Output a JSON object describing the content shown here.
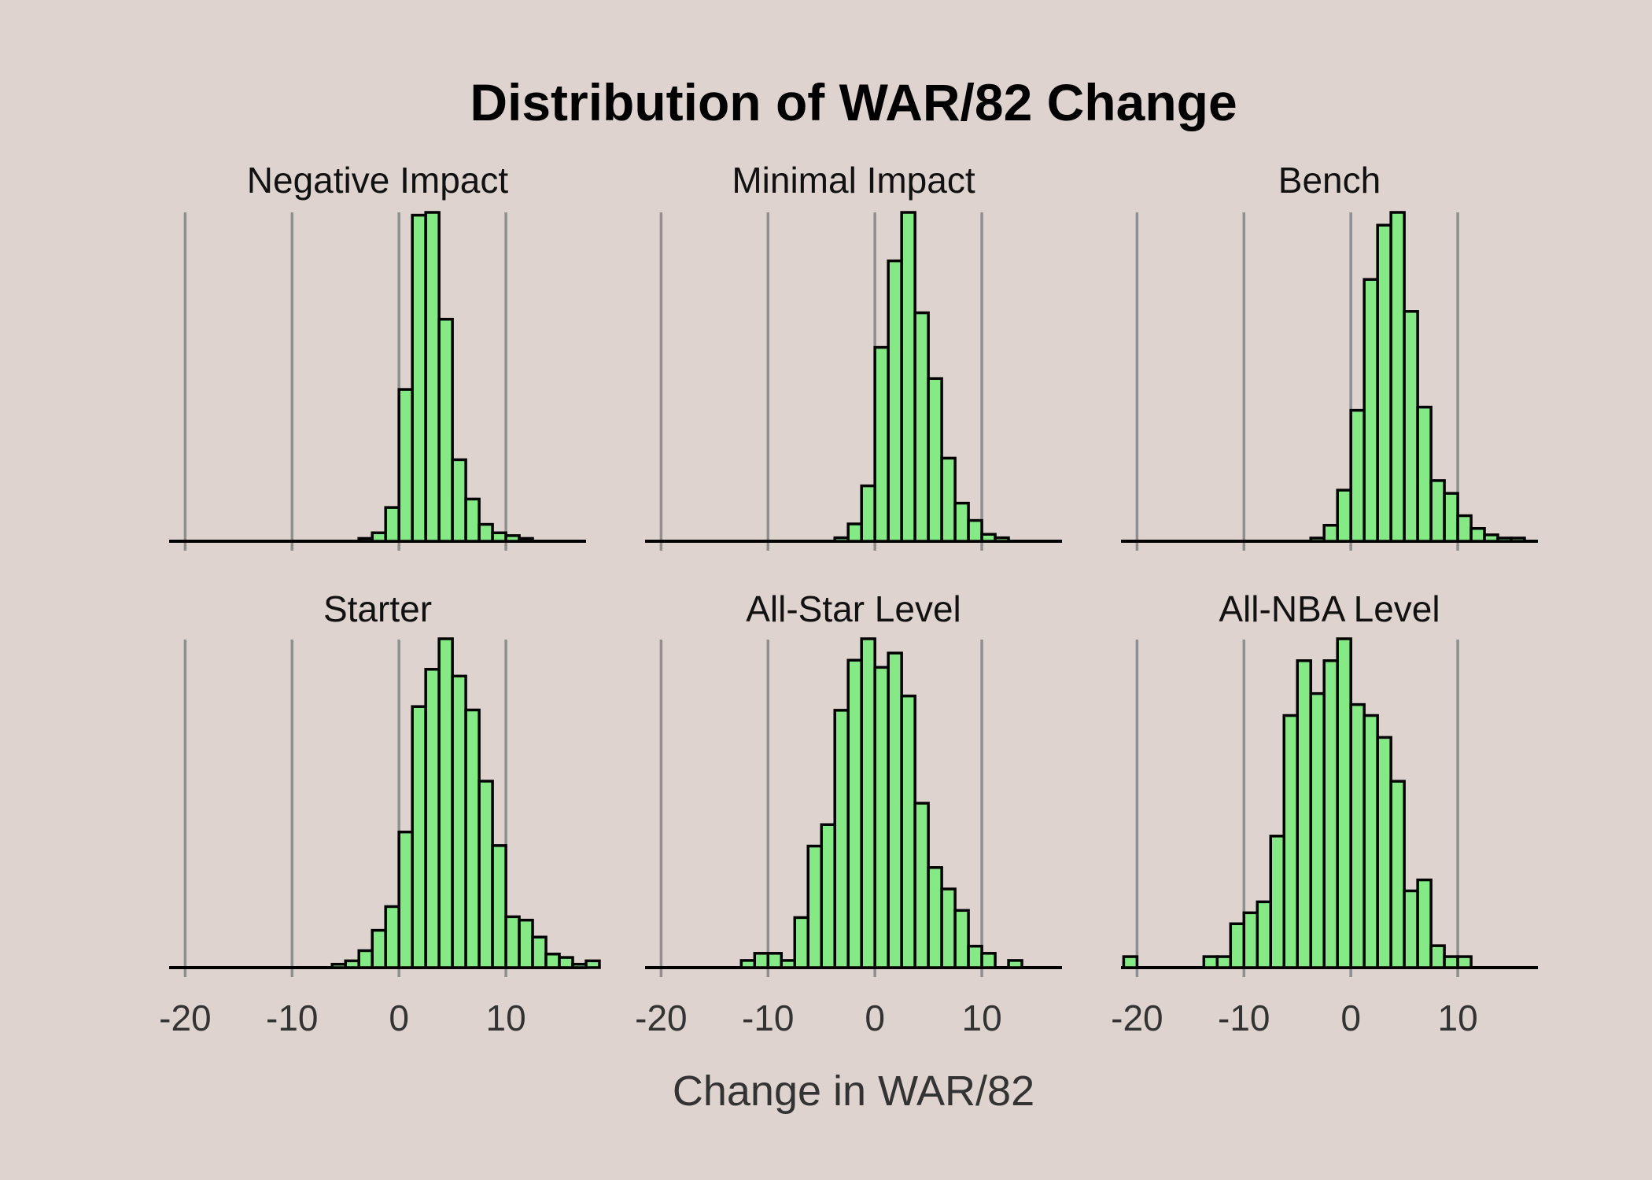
{
  "chart_data": {
    "type": "bar",
    "title": "Distribution of WAR/82 Change",
    "xlabel": "Change in WAR/82",
    "ylabel": "",
    "xlim": [
      -21.5,
      17.5
    ],
    "x_ticks": [
      -20,
      -10,
      0,
      10
    ],
    "x_tick_labels": [
      "-20",
      "-10",
      "0",
      "10"
    ],
    "bin_width": 1.25,
    "bin_start": -21.25,
    "grid": "vertical major lines",
    "bar_color": "#85ea85",
    "background": "#ded3cf",
    "panels": [
      {
        "name": "Negative Impact",
        "values": [
          0,
          0,
          0,
          0,
          0,
          0,
          0,
          0,
          0,
          0,
          0,
          0,
          0,
          0,
          1,
          3,
          12,
          54,
          116,
          117,
          79,
          29,
          15,
          6,
          3,
          2,
          1,
          0,
          0,
          0,
          0,
          0
        ]
      },
      {
        "name": "Minimal Impact",
        "values": [
          0,
          0,
          0,
          0,
          0,
          0,
          0,
          0,
          0,
          0,
          0,
          0,
          0,
          0,
          1,
          5,
          16,
          56,
          81,
          95,
          66,
          47,
          24,
          11,
          6,
          2,
          1,
          0,
          0,
          0,
          0,
          0
        ]
      },
      {
        "name": "Bench",
        "values": [
          0,
          0,
          0,
          0,
          0,
          0,
          0,
          0,
          0,
          0,
          0,
          0,
          0,
          0,
          1,
          5,
          16,
          41,
          82,
          99,
          103,
          72,
          42,
          19,
          15,
          8,
          4,
          2,
          1,
          1,
          0,
          0
        ]
      },
      {
        "name": "Starter",
        "values": [
          0,
          0,
          0,
          0,
          0,
          0,
          0,
          0,
          0,
          0,
          0,
          0,
          1,
          2,
          5,
          11,
          18,
          40,
          77,
          88,
          97,
          86,
          76,
          55,
          36,
          15,
          14,
          9,
          4,
          3,
          1,
          2
        ]
      },
      {
        "name": "All-Star Level",
        "values": [
          0,
          0,
          0,
          0,
          0,
          0,
          0,
          1,
          2,
          2,
          1,
          7,
          17,
          20,
          36,
          43,
          46,
          42,
          44,
          38,
          23,
          14,
          11,
          8,
          3,
          2,
          0,
          1,
          0,
          0,
          0,
          0
        ]
      },
      {
        "name": "All-NBA Level",
        "values": [
          1,
          0,
          0,
          0,
          0,
          0,
          1,
          1,
          4,
          5,
          6,
          12,
          23,
          28,
          25,
          28,
          30,
          24,
          23,
          21,
          17,
          7,
          8,
          2,
          1,
          1,
          0,
          0,
          0,
          0,
          0,
          0
        ]
      }
    ]
  }
}
